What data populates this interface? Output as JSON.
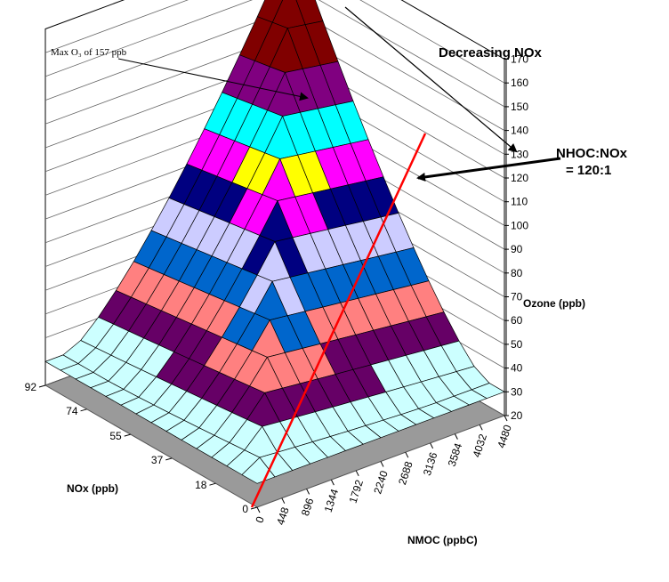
{
  "chart_data": {
    "type": "surface",
    "zlabel": "Ozone (ppb)",
    "xlabel": "NMOC (ppbC)",
    "ylabel": "NOx (ppb)",
    "z_ticks": [
      "20",
      "30",
      "40",
      "50",
      "60",
      "70",
      "80",
      "90",
      "100",
      "110",
      "120",
      "130",
      "140",
      "150",
      "160",
      "170"
    ],
    "z_range": [
      20,
      170
    ],
    "x_ticks": [
      "0",
      "448",
      "896",
      "1344",
      "1792",
      "2240",
      "2688",
      "3136",
      "3584",
      "4032",
      "4480"
    ],
    "x_range": [
      0,
      4480
    ],
    "y_ticks": [
      "0",
      "18",
      "37",
      "55",
      "74",
      "92"
    ],
    "y_range": [
      0,
      92
    ],
    "color_bands": [
      {
        "from": 20,
        "to": 30,
        "color": "#ffffcc"
      },
      {
        "from": 30,
        "to": 40,
        "color": "#ccffff"
      },
      {
        "from": 40,
        "to": 50,
        "color": "#660066"
      },
      {
        "from": 50,
        "to": 60,
        "color": "#ff8080"
      },
      {
        "from": 60,
        "to": 70,
        "color": "#0066cc"
      },
      {
        "from": 70,
        "to": 80,
        "color": "#ccccff"
      },
      {
        "from": 80,
        "to": 90,
        "color": "#000080"
      },
      {
        "from": 90,
        "to": 100,
        "color": "#ff00ff"
      },
      {
        "from": 100,
        "to": 110,
        "color": "#ffff00"
      },
      {
        "from": 110,
        "to": 120,
        "color": "#00ffff"
      },
      {
        "from": 120,
        "to": 130,
        "color": "#800080"
      },
      {
        "from": 130,
        "to": 170,
        "color": "#800000"
      }
    ],
    "annotations": {
      "max_o3": "Max O₃ of 157 ppb",
      "decreasing_nox": "Decreasing NOx",
      "ratio_line1": "NHOC:NOx",
      "ratio_line2": "= 120:1"
    }
  }
}
